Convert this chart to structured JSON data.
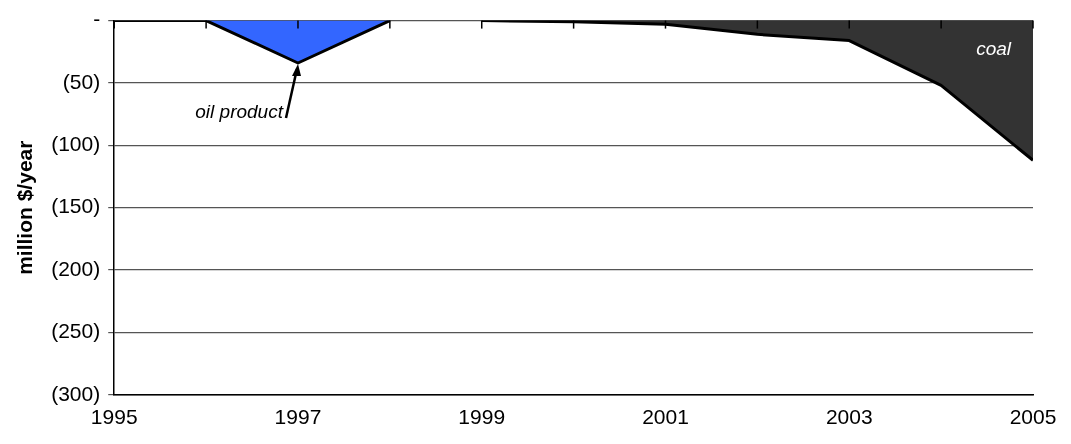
{
  "chart_data": {
    "type": "area",
    "ylabel": "million $/year",
    "x": [
      1995,
      1996,
      1997,
      1998,
      1999,
      2000,
      2001,
      2002,
      2003,
      2004,
      2005
    ],
    "series": [
      {
        "color": "#3366ff",
        "values": [
          0,
          0,
          -34,
          0,
          null,
          null,
          null,
          null,
          null,
          null,
          null
        ]
      },
      {
        "color": "#333333",
        "values": [
          null,
          null,
          null,
          null,
          0,
          -1,
          -3,
          -11,
          -16,
          -52,
          -112
        ]
      }
    ],
    "xlim": [
      1995,
      2005
    ],
    "xticks": [
      1995,
      {
        "value": 1996,
        "label": null
      },
      1997,
      {
        "value": 1998,
        "label": null
      },
      1999,
      {
        "value": 2000,
        "label": null
      },
      2001,
      {
        "value": 2002,
        "label": null
      },
      2003,
      {
        "value": 2004,
        "label": null
      },
      2005
    ],
    "ylim": [
      -300,
      0
    ],
    "yticks": [
      {
        "value": 0,
        "label": "-"
      },
      {
        "value": -50,
        "label": "(50)"
      },
      {
        "value": -100,
        "label": "(100)"
      },
      {
        "value": -150,
        "label": "(150)"
      },
      {
        "value": -200,
        "label": "(200)"
      },
      {
        "value": -250,
        "label": "(250)"
      },
      {
        "value": -300,
        "label": "(300)"
      }
    ],
    "grid": "y",
    "legend": false,
    "annotations": [
      {
        "text": "oil product",
        "x": 1997,
        "y": -34
      },
      "coal"
    ]
  }
}
